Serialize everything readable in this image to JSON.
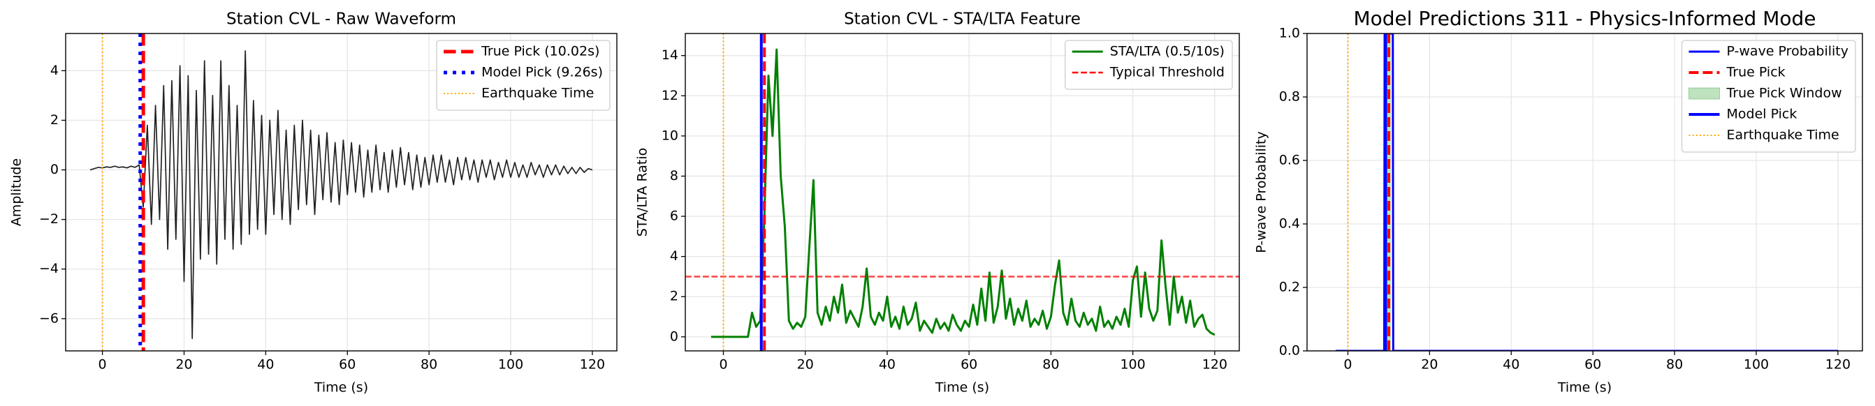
{
  "chart_data": [
    {
      "type": "line",
      "title": "Station CVL - Raw Waveform",
      "x_label": "Time (s)",
      "y_label": "Amplitude",
      "grid": true,
      "legend": "upper right",
      "color": "#222222",
      "x": [
        -3,
        -2,
        -1,
        0,
        1,
        2,
        3,
        4,
        5,
        6,
        7,
        8,
        9,
        10,
        11,
        12,
        13,
        14,
        15,
        16,
        17,
        18,
        19,
        20,
        21,
        22,
        23,
        24,
        25,
        26,
        27,
        28,
        29,
        30,
        31,
        32,
        33,
        34,
        35,
        36,
        37,
        38,
        39,
        40,
        41,
        42,
        43,
        44,
        45,
        46,
        47,
        48,
        49,
        50,
        51,
        52,
        53,
        54,
        55,
        56,
        57,
        58,
        59,
        60,
        61,
        62,
        63,
        64,
        65,
        66,
        67,
        68,
        69,
        70,
        71,
        72,
        73,
        74,
        75,
        76,
        77,
        78,
        79,
        80,
        81,
        82,
        83,
        84,
        85,
        86,
        87,
        88,
        89,
        90,
        91,
        92,
        93,
        94,
        95,
        96,
        97,
        98,
        99,
        100,
        101,
        102,
        103,
        104,
        105,
        106,
        107,
        108,
        109,
        110,
        111,
        112,
        113,
        114,
        115,
        116,
        117,
        118,
        119,
        120
      ],
      "values": [
        0,
        0.05,
        0.1,
        0.08,
        0.12,
        0.1,
        0.15,
        0.1,
        0.12,
        0.08,
        0.15,
        0.1,
        0.2,
        -1.5,
        1.8,
        -2.2,
        2.6,
        -2.0,
        3.4,
        -3.2,
        3.6,
        -2.8,
        4.2,
        -4.5,
        3.8,
        -6.8,
        3.2,
        -3.6,
        4.4,
        -3.4,
        3.0,
        -3.8,
        4.4,
        -2.8,
        3.4,
        -3.2,
        2.6,
        -3.0,
        4.8,
        -2.6,
        2.8,
        -2.4,
        2.2,
        -2.6,
        2.0,
        -1.8,
        2.4,
        -2.0,
        1.6,
        -2.2,
        1.8,
        -1.6,
        2.0,
        -1.4,
        1.6,
        -1.8,
        1.4,
        -1.2,
        1.5,
        -1.3,
        1.1,
        -1.4,
        1.2,
        -1.0,
        1.1,
        -0.9,
        1.0,
        -1.1,
        0.8,
        -0.9,
        1.0,
        -0.8,
        0.7,
        -0.9,
        0.8,
        -0.7,
        0.9,
        -0.6,
        0.7,
        -0.8,
        0.6,
        -0.7,
        0.5,
        -0.6,
        0.6,
        -0.5,
        0.6,
        -0.5,
        0.4,
        -0.6,
        0.5,
        -0.4,
        0.5,
        -0.4,
        0.4,
        -0.5,
        0.4,
        -0.3,
        0.4,
        -0.4,
        0.3,
        -0.3,
        0.4,
        -0.3,
        0.3,
        -0.3,
        0.2,
        -0.3,
        0.3,
        -0.2,
        0.2,
        -0.3,
        0.2,
        -0.2,
        0.2,
        -0.2,
        0.15,
        -0.15,
        0.1,
        -0.15,
        0.1,
        -0.1,
        0.05,
        0
      ],
      "xlim": [
        -9,
        126
      ],
      "xticks": [
        0,
        20,
        40,
        60,
        80,
        100,
        120
      ],
      "ylim": [
        -7.3,
        5.5
      ],
      "yticks": [
        {
          "value": -6,
          "label": "−6"
        },
        {
          "value": -4,
          "label": "−4"
        },
        {
          "value": -2,
          "label": "−2"
        },
        0,
        2,
        4
      ],
      "annotations": [
        {
          "kind": "vline",
          "name": "True Pick (10.02s)",
          "x": 10.02,
          "color": "#ff0000",
          "style": "dashed",
          "linewidth": 5
        },
        {
          "kind": "vline",
          "name": "Model Pick (9.26s)",
          "x": 9.26,
          "color": "#0000ff",
          "style": "dotted",
          "linewidth": 5
        },
        {
          "kind": "vline",
          "name": "Earthquake Time",
          "x": 0,
          "color": "#ffa500",
          "style": "dotted",
          "linewidth": 2
        }
      ]
    },
    {
      "type": "line",
      "title": "Station CVL - STA/LTA Feature",
      "x_label": "Time (s)",
      "y_label": "STA/LTA Ratio",
      "grid": true,
      "legend": "upper right",
      "x": [
        -3,
        -2,
        -1,
        0,
        1,
        2,
        3,
        4,
        5,
        6,
        7,
        8,
        9,
        10,
        11,
        12,
        13,
        14,
        15,
        16,
        17,
        18,
        19,
        20,
        21,
        22,
        23,
        24,
        25,
        26,
        27,
        28,
        29,
        30,
        31,
        32,
        33,
        34,
        35,
        36,
        37,
        38,
        39,
        40,
        41,
        42,
        43,
        44,
        45,
        46,
        47,
        48,
        49,
        50,
        51,
        52,
        53,
        54,
        55,
        56,
        57,
        58,
        59,
        60,
        61,
        62,
        63,
        64,
        65,
        66,
        67,
        68,
        69,
        70,
        71,
        72,
        73,
        74,
        75,
        76,
        77,
        78,
        79,
        80,
        81,
        82,
        83,
        84,
        85,
        86,
        87,
        88,
        89,
        90,
        91,
        92,
        93,
        94,
        95,
        96,
        97,
        98,
        99,
        100,
        101,
        102,
        103,
        104,
        105,
        106,
        107,
        108,
        109,
        110,
        111,
        112,
        113,
        114,
        115,
        116,
        117,
        118,
        119,
        120
      ],
      "series": [
        {
          "name": "STA/LTA (0.5/10s)",
          "color": "#008000",
          "values": [
            0,
            0,
            0,
            0,
            0,
            0,
            0,
            0,
            0,
            0,
            1.2,
            0.5,
            0.8,
            6,
            13,
            10,
            14.3,
            8,
            5.5,
            0.8,
            0.4,
            0.7,
            0.5,
            1.0,
            4.5,
            7.8,
            1.2,
            0.6,
            1.5,
            0.8,
            2.0,
            1.2,
            2.6,
            0.7,
            1.3,
            0.9,
            0.5,
            1.5,
            3.4,
            1.0,
            0.6,
            1.2,
            0.8,
            2.0,
            0.5,
            1.0,
            0.4,
            1.5,
            0.6,
            0.9,
            1.7,
            0.3,
            0.8,
            0.5,
            0.2,
            0.9,
            0.4,
            0.7,
            0.3,
            1.1,
            0.6,
            0.3,
            0.8,
            0.5,
            1.6,
            0.6,
            2.4,
            0.8,
            3.2,
            0.7,
            1.5,
            3.3,
            0.9,
            1.9,
            0.6,
            1.4,
            0.8,
            1.8,
            0.5,
            0.9,
            0.6,
            1.3,
            0.4,
            1.0,
            2.6,
            3.8,
            1.2,
            0.6,
            1.9,
            0.8,
            0.5,
            1.2,
            0.6,
            0.9,
            0.3,
            1.5,
            0.5,
            0.8,
            0.4,
            1.0,
            0.6,
            1.4,
            0.5,
            2.8,
            3.5,
            1.0,
            3.2,
            1.4,
            0.8,
            1.3,
            4.8,
            2.5,
            0.6,
            3.0,
            1.2,
            2.0,
            0.7,
            1.8,
            0.5,
            0.9,
            1.1,
            0.4,
            0.2,
            0.1
          ]
        }
      ],
      "xlim": [
        -9.3,
        126
      ],
      "xticks": [
        0,
        20,
        40,
        60,
        80,
        100,
        120
      ],
      "ylim": [
        -0.7,
        15.1
      ],
      "yticks": [
        0,
        2,
        4,
        6,
        8,
        10,
        12,
        14
      ],
      "annotations": [
        {
          "kind": "hline",
          "name": "Typical Threshold",
          "y": 3,
          "color": "#ff0000",
          "style": "dashed",
          "linewidth": 2.5
        },
        {
          "kind": "vline",
          "x": 9.26,
          "color": "#0000ff",
          "style": "solid",
          "linewidth": 4
        },
        {
          "kind": "vline",
          "x": 10.02,
          "color": "#ff0000",
          "style": "dashed",
          "linewidth": 4
        },
        {
          "kind": "vline",
          "x": 0,
          "color": "#ffa500",
          "style": "dotted",
          "linewidth": 2
        }
      ]
    },
    {
      "type": "line",
      "title": "Model Predictions 311 - Physics-Informed Mode",
      "x_label": "Time (s)",
      "y_label": "P-wave Probability",
      "grid": true,
      "legend": "upper right",
      "x": [
        -3,
        8.9,
        9.0,
        11.0,
        11.1,
        120
      ],
      "series": [
        {
          "name": "P-wave Probability",
          "color": "#0000ff",
          "values": [
            0,
            0,
            1,
            1,
            0,
            0
          ]
        }
      ],
      "xlim": [
        -10,
        126
      ],
      "xticks": [
        0,
        20,
        40,
        60,
        80,
        100,
        120
      ],
      "ylim": [
        0,
        1
      ],
      "yticks": [
        {
          "value": 0,
          "label": "0.0"
        },
        0.2,
        0.4,
        0.6,
        0.8,
        {
          "value": 1,
          "label": "1.0"
        }
      ],
      "annotations": [
        {
          "kind": "vline",
          "name": "True Pick",
          "x": 10.02,
          "color": "#ff0000",
          "style": "dashed",
          "linewidth": 4
        },
        {
          "kind": "span",
          "name": "True Pick Window",
          "x0": 9.52,
          "x1": 10.52,
          "color": "#2ca02c"
        },
        {
          "kind": "vline",
          "name": "Model Pick",
          "x": 9.26,
          "color": "#0000ff",
          "style": "solid",
          "linewidth": 4
        },
        {
          "kind": "vline",
          "name": "Earthquake Time",
          "x": 0,
          "color": "#ffa500",
          "style": "dotted",
          "linewidth": 2
        }
      ]
    }
  ]
}
